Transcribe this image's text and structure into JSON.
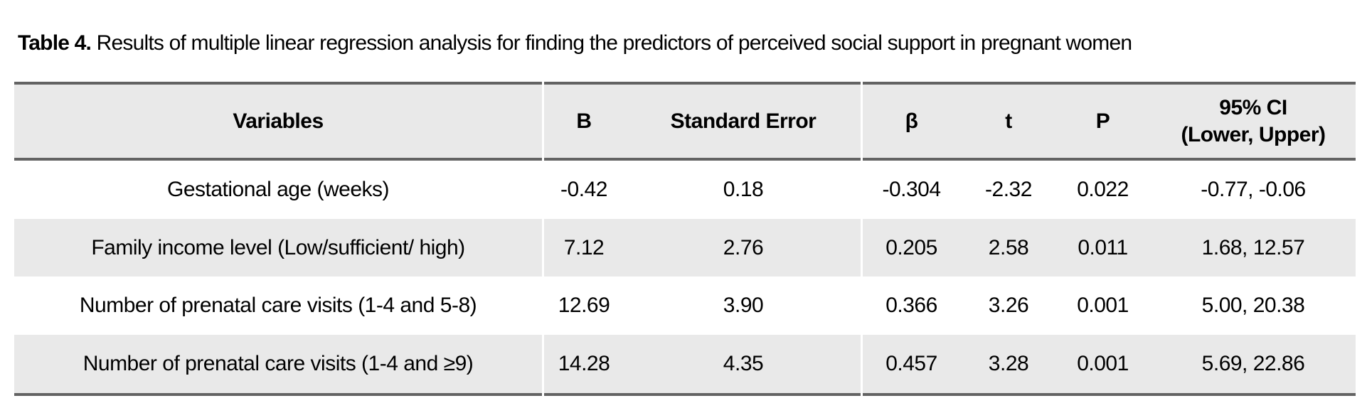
{
  "title": {
    "prefix": "Table 4.",
    "text": " Results of multiple linear regression analysis for finding the predictors of perceived social support in pregnant women"
  },
  "table": {
    "header": {
      "variables": "Variables",
      "b": "B",
      "se": "Standard Error",
      "beta": "β",
      "t": "t",
      "p": "P",
      "ci_line1": "95% CI",
      "ci_line2": "(Lower, Upper)"
    },
    "rows": [
      {
        "variable": "Gestational age (weeks)",
        "b": "-0.42",
        "se": "0.18",
        "beta": "-0.304",
        "t": "-2.32",
        "p": "0.022",
        "ci": "-0.77, -0.06"
      },
      {
        "variable": "Family income level (Low/sufficient/ high)",
        "b": "7.12",
        "se": "2.76",
        "beta": "0.205",
        "t": "2.58",
        "p": "0.011",
        "ci": "1.68, 12.57"
      },
      {
        "variable": "Number of prenatal care visits (1-4 and 5-8)",
        "b": "12.69",
        "se": "3.90",
        "beta": "0.366",
        "t": "3.26",
        "p": "0.001",
        "ci": "5.00, 20.38"
      },
      {
        "variable": "Number of prenatal care visits (1-4 and ≥9)",
        "b": "14.28",
        "se": "4.35",
        "beta": "0.457",
        "t": "3.28",
        "p": "0.001",
        "ci": "5.69, 22.86"
      }
    ],
    "colors": {
      "band_fill": "#e9e9e9",
      "rule": "#636363",
      "text": "#000000",
      "background": "#ffffff"
    }
  },
  "chart_data": {
    "type": "table",
    "title": "Table 4. Results of multiple linear regression analysis for finding the predictors of perceived social support in pregnant women",
    "columns": [
      "Variables",
      "B",
      "Standard Error",
      "β",
      "t",
      "P",
      "95% CI (Lower, Upper)"
    ],
    "rows": [
      [
        "Gestational age (weeks)",
        -0.42,
        0.18,
        -0.304,
        -2.32,
        0.022,
        "-0.77, -0.06"
      ],
      [
        "Family income level (Low/sufficient/ high)",
        7.12,
        2.76,
        0.205,
        2.58,
        0.011,
        "1.68, 12.57"
      ],
      [
        "Number of prenatal care visits (1-4 and 5-8)",
        12.69,
        3.9,
        0.366,
        3.26,
        0.001,
        "5.00, 20.38"
      ],
      [
        "Number of prenatal care visits (1-4 and ≥9)",
        14.28,
        4.35,
        0.457,
        3.28,
        0.001,
        "5.69, 22.86"
      ]
    ]
  }
}
